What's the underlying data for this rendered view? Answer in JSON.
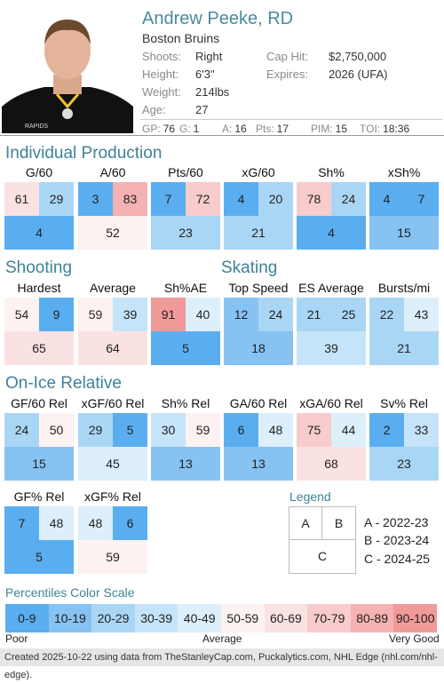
{
  "player": {
    "name": "Andrew Peeke, RD",
    "team": "Boston Bruins",
    "shoots_label": "Shoots:",
    "shoots": "Right",
    "height_label": "Height:",
    "height": "6'3\"",
    "weight_label": "Weight:",
    "weight": "214lbs",
    "age_label": "Age:",
    "age": "27",
    "caphit_label": "Cap Hit:",
    "caphit": "$2,750,000",
    "expires_label": "Expires:",
    "expires": "2026 (UFA)",
    "jersey_text": "RAPIDS"
  },
  "season_stats": [
    {
      "label": "GP:",
      "value": "76"
    },
    {
      "label": "G:",
      "value": "1"
    },
    {
      "label": "A:",
      "value": "16"
    },
    {
      "label": "Pts:",
      "value": "17"
    },
    {
      "label": "PIM:",
      "value": "15"
    },
    {
      "label": "TOI:",
      "value": "18:36"
    }
  ],
  "sections": {
    "individual": "Individual Production",
    "shooting": "Shooting",
    "skating": "Skating",
    "onice": "On-Ice Relative"
  },
  "metrics": [
    {
      "label": "G/60",
      "a": 61,
      "b": 29,
      "c": 4
    },
    {
      "label": "A/60",
      "a": 3,
      "b": 83,
      "c": 52
    },
    {
      "label": "Pts/60",
      "a": 7,
      "b": 72,
      "c": 23
    },
    {
      "label": "xG/60",
      "a": 4,
      "b": 20,
      "c": 21
    },
    {
      "label": "Sh%",
      "a": 78,
      "b": 24,
      "c": 4
    },
    {
      "label": "xSh%",
      "a": 4,
      "b": 7,
      "c": 15
    },
    {
      "label": "Hardest",
      "a": 54,
      "b": 9,
      "c": 65
    },
    {
      "label": "Average",
      "a": 59,
      "b": 39,
      "c": 64
    },
    {
      "label": "Sh%AE",
      "a": 91,
      "b": 40,
      "c": 5
    },
    {
      "label": "Top Speed",
      "a": 12,
      "b": 24,
      "c": 18
    },
    {
      "label": "ES Average",
      "a": 21,
      "b": 25,
      "c": 39
    },
    {
      "label": "Bursts/mi",
      "a": 22,
      "b": 43,
      "c": 21
    },
    {
      "label": "GF/60 Rel",
      "a": 24,
      "b": 50,
      "c": 15
    },
    {
      "label": "xGF/60 Rel",
      "a": 29,
      "b": 5,
      "c": 45
    },
    {
      "label": "Sh% Rel",
      "a": 30,
      "b": 59,
      "c": 13
    },
    {
      "label": "GA/60 Rel",
      "a": 6,
      "b": 48,
      "c": 13
    },
    {
      "label": "xGA/60 Rel",
      "a": 75,
      "b": 44,
      "c": 68
    },
    {
      "label": "Sv% Rel",
      "a": 2,
      "b": 33,
      "c": 23
    },
    {
      "label": "GF% Rel",
      "a": 7,
      "b": 48,
      "c": 5
    },
    {
      "label": "xGF% Rel",
      "a": 48,
      "b": 6,
      "c": 59
    }
  ],
  "legend": {
    "title": "Legend",
    "a": "A",
    "b": "B",
    "c": "C",
    "desc_a": "A - 2022-23",
    "desc_b": "B - 2023-24",
    "desc_c": "C - 2024-25"
  },
  "scale": {
    "title": "Percentiles Color Scale",
    "bins": [
      {
        "label": "0-9",
        "color": "#5aaef0"
      },
      {
        "label": "10-19",
        "color": "#86c2f2"
      },
      {
        "label": "20-29",
        "color": "#aad6f6"
      },
      {
        "label": "30-39",
        "color": "#c6e4f9"
      },
      {
        "label": "40-49",
        "color": "#ddeffb"
      },
      {
        "label": "50-59",
        "color": "#fdf2f2"
      },
      {
        "label": "60-69",
        "color": "#fbe2e2"
      },
      {
        "label": "70-79",
        "color": "#f8cccc"
      },
      {
        "label": "80-89",
        "color": "#f4b2b2"
      },
      {
        "label": "90-100",
        "color": "#f09a9a"
      }
    ],
    "low": "Poor",
    "mid": "Average",
    "high": "Very Good"
  },
  "footer": "Created 2025-10-22 using data from TheStanleyCap.com, Puckalytics.com, NHL Edge (nhl.com/nhl-edge)."
}
